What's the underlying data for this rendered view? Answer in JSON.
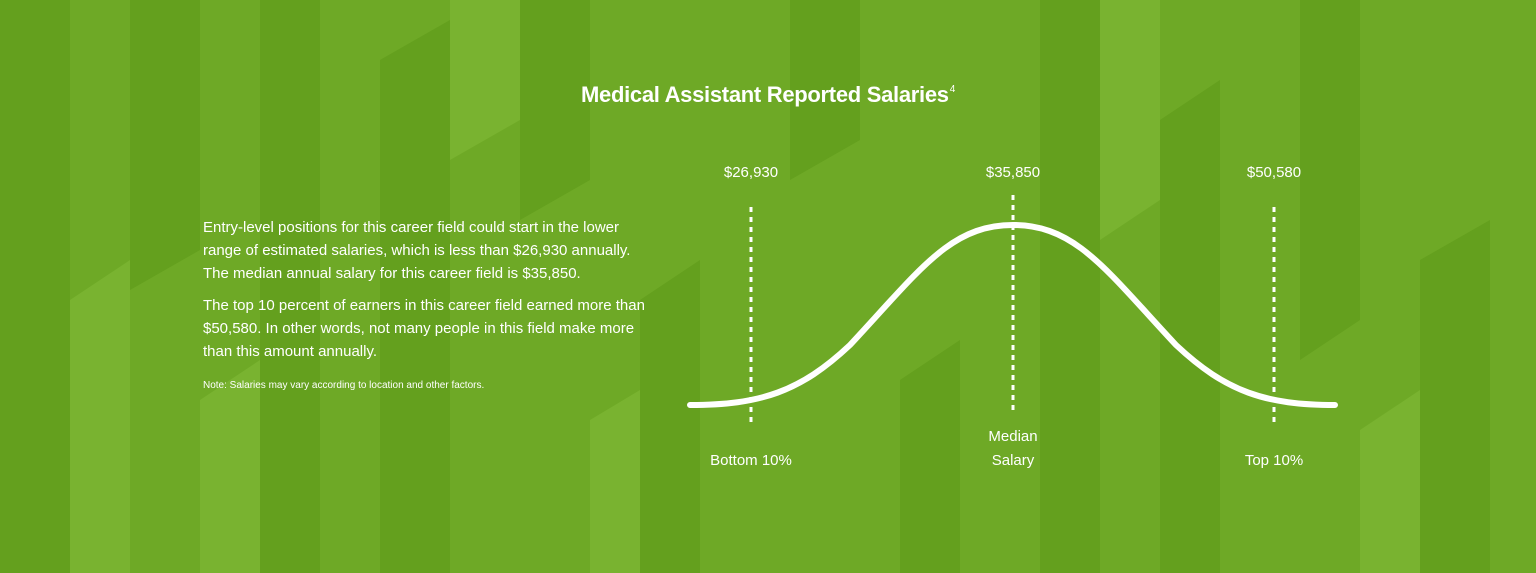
{
  "header": {
    "title": "Medical Assistant Reported Salaries",
    "footnote_ref": "4"
  },
  "body": {
    "paragraphs": [
      "Entry-level positions for this career field could start in the lower range of estimated salaries, which is less than $26,930 annually. The median annual salary for this career field is $35,850.",
      "The top 10 percent of earners in this career field earned more than $50,580. In other words, not many people in this field make more than this amount annually."
    ],
    "note": "Note: Salaries may vary according to location and other factors."
  },
  "curve": {
    "markers": [
      {
        "amount": "$26,930",
        "label": "Bottom 10%"
      },
      {
        "amount": "$35,850",
        "label": "Median Salary"
      },
      {
        "amount": "$50,580",
        "label": "Top 10%"
      }
    ]
  }
}
